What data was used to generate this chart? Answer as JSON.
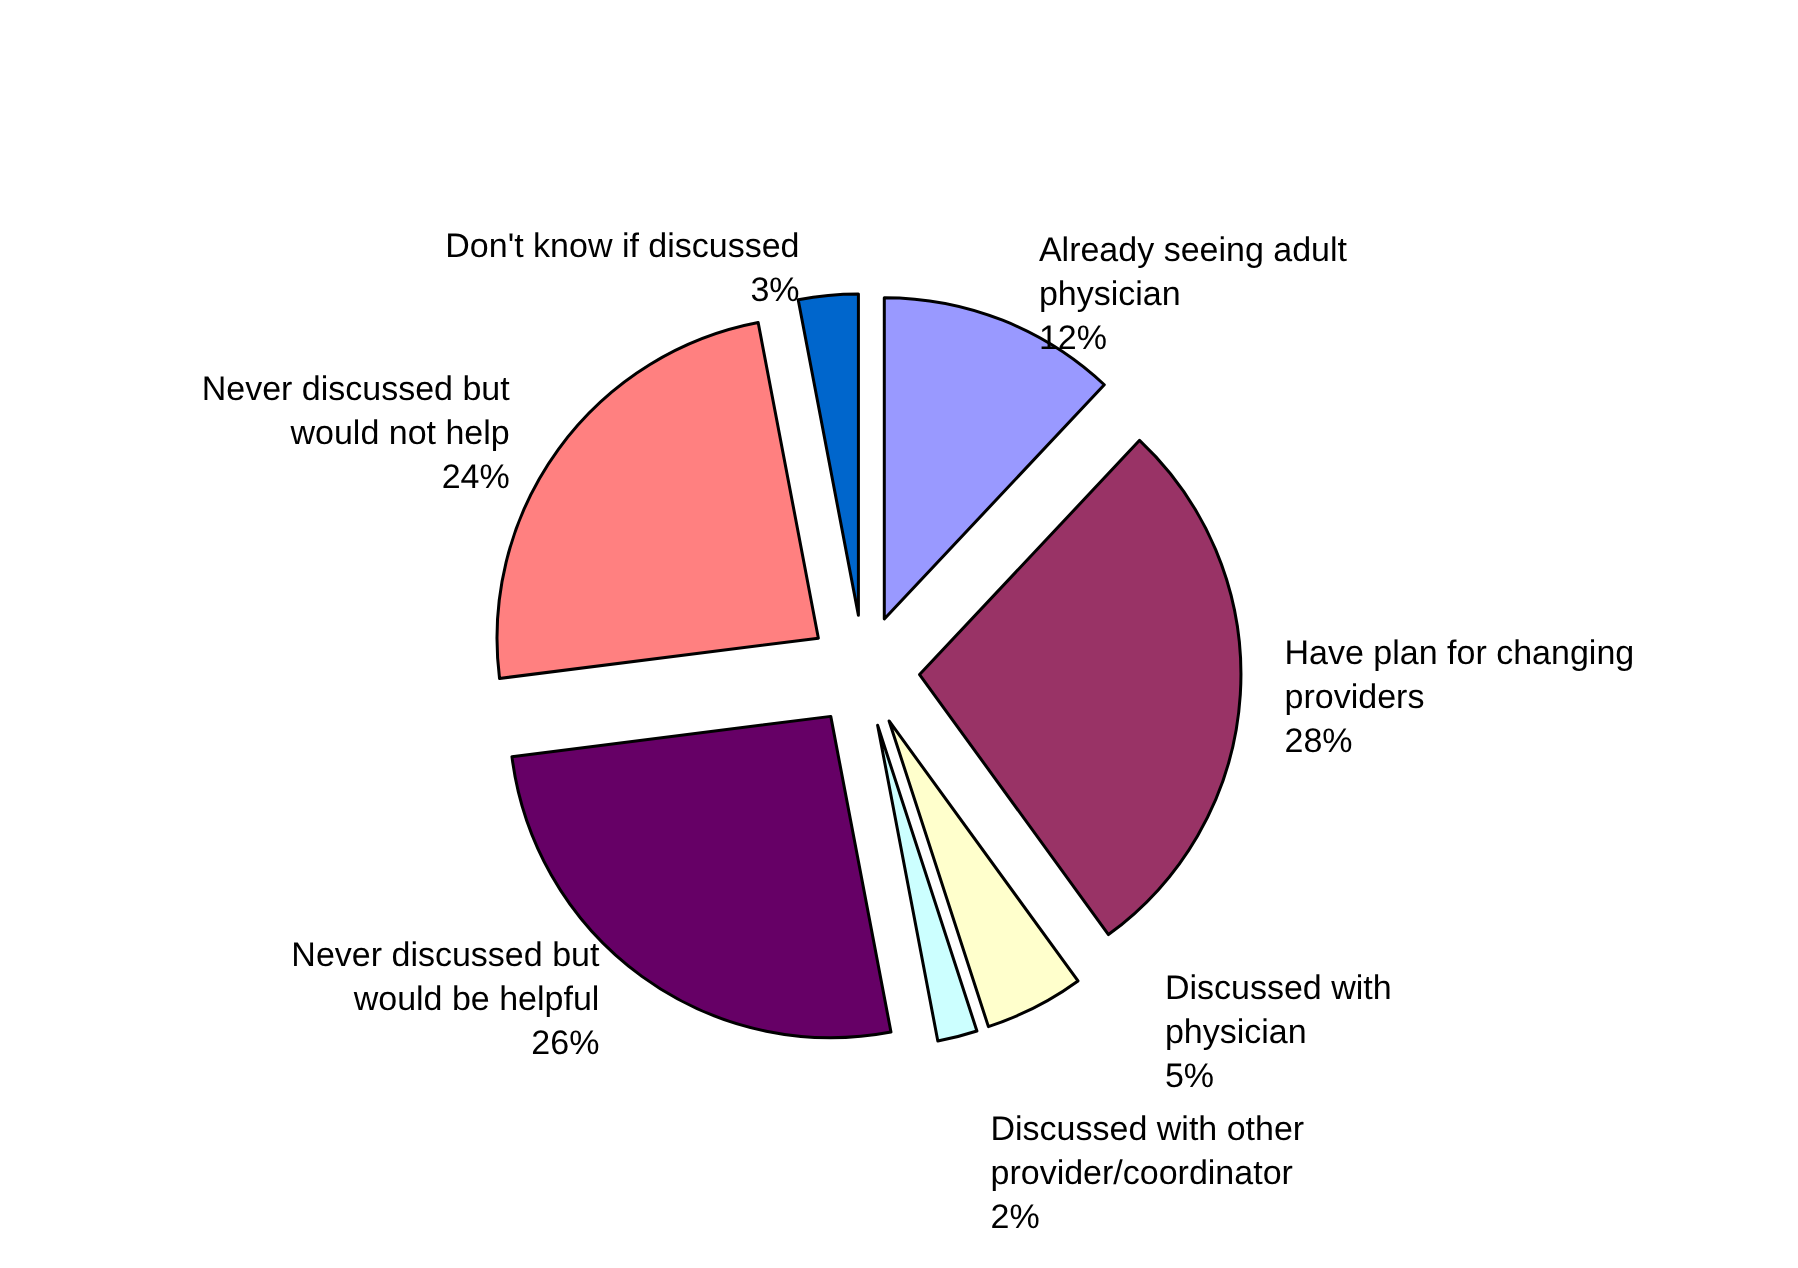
{
  "chart_data": {
    "type": "pie",
    "categories": [
      "Already seeing adult physician",
      "Have plan for changing providers",
      "Discussed with physician",
      "Discussed with other provider/coordinator",
      "Never discussed but would be helpful",
      "Never discussed but would not help",
      "Don't know if discussed"
    ],
    "values": [
      12,
      28,
      5,
      2,
      26,
      24,
      3
    ],
    "value_labels": [
      "12%",
      "28%",
      "5%",
      "2%",
      "26%",
      "24%",
      "3%"
    ],
    "colors": [
      "#9999ff",
      "#993366",
      "#ffffcc",
      "#ccffff",
      "#660066",
      "#ff8080",
      "#0066cc"
    ]
  }
}
